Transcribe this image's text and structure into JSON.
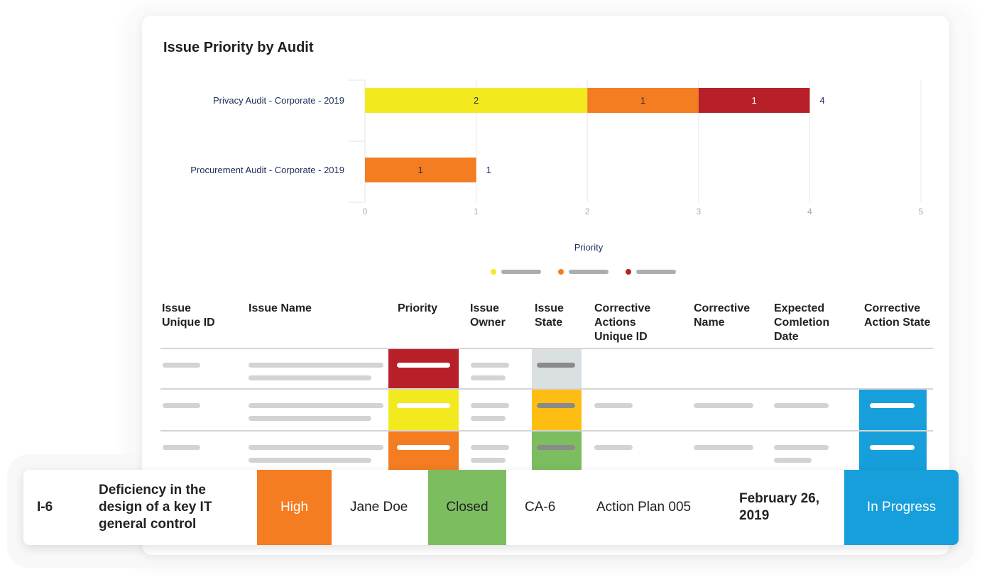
{
  "chart_title": "Issue Priority by Audit",
  "chart_data": {
    "type": "bar",
    "orientation": "horizontal",
    "stacked": true,
    "categories": [
      "Privacy Audit - Corporate - 2019",
      "Procurement  Audit - Corporate - 2019"
    ],
    "series": [
      {
        "color": "#f2ea1f",
        "values": [
          2,
          0
        ]
      },
      {
        "color": "#f47c21",
        "values": [
          1,
          1
        ]
      },
      {
        "color": "#b72028",
        "values": [
          1,
          0
        ]
      }
    ],
    "totals": [
      4,
      1
    ],
    "xlabel": "Priority",
    "xlim": [
      0,
      5
    ],
    "xticks": [
      "0",
      "1",
      "2",
      "3",
      "4",
      "5"
    ],
    "grid": true,
    "legend": "bottom"
  },
  "table": {
    "headers": [
      [
        "Issue",
        "Unique ID"
      ],
      [
        "Issue Name"
      ],
      [
        "Priority"
      ],
      [
        "Issue",
        "Owner"
      ],
      [
        "Issue",
        "State"
      ],
      [
        "Corrective",
        "Actions",
        "Unique ID"
      ],
      [
        "Corrective",
        "Name"
      ],
      [
        "Expected",
        "Comletion",
        "Date"
      ],
      [
        "Corrective",
        "Action State"
      ]
    ],
    "rows": [
      {
        "priority_color": "#b72028",
        "state_color": "#dadfe2",
        "ca_state_color": null
      },
      {
        "priority_color": "#f2ea1f",
        "state_color": "#fdbd13",
        "ca_state_color": "#179fdb"
      },
      {
        "priority_color": "#f47c21",
        "state_color": "#7cbd60",
        "ca_state_color": "#179fdb"
      }
    ]
  },
  "highlight_row": {
    "id": "I-6",
    "name": "Deficiency in the design of a key IT general control",
    "priority": "High",
    "priority_color": "#f47c21",
    "owner": "Jane Doe",
    "state": "Closed",
    "state_color": "#7cbd60",
    "ca_id": "CA-6",
    "ca_name": "Action Plan 005",
    "date": "February 26, 2019",
    "ca_state": "In Progress",
    "ca_state_color": "#179fdb"
  }
}
